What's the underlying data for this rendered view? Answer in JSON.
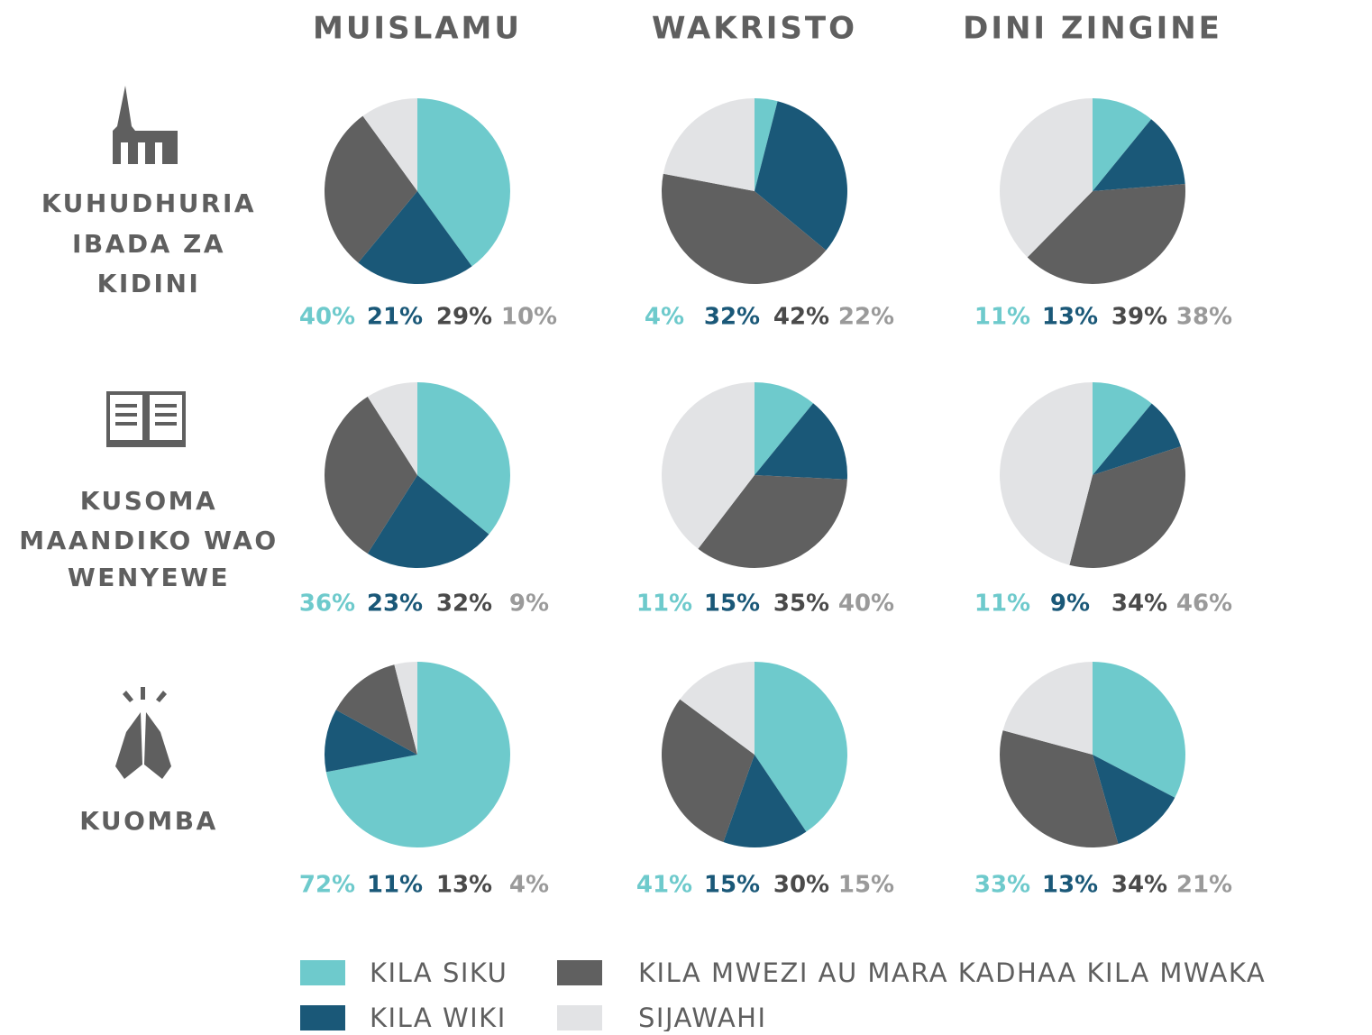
{
  "columns": [
    "MUISLAMU",
    "WAKRISTO",
    "DINI ZINGINE"
  ],
  "rows": [
    [
      "KUHUDHURIA",
      "IBADA ZA",
      "KIDINI"
    ],
    [
      "KUSOMA",
      "MAANDIKO WAO",
      "WENYEWE"
    ],
    [
      "KUOMBA"
    ]
  ],
  "legend": {
    "categories": [
      "KILA SIKU",
      "KILA WIKI",
      "KILA MWEZI AU MARA KADHAA KILA MWAKA",
      "SIJAWAHI"
    ],
    "colors": [
      "#6ecacc",
      "#1a5878",
      "#606060",
      "#e2e3e5"
    ],
    "label_colors": [
      "#6ecacc",
      "#1a5878",
      "#4a4a4a",
      "#9a9a9a"
    ]
  },
  "chart_data": [
    {
      "type": "pie",
      "values": [
        40,
        21,
        29,
        10
      ],
      "value_labels": [
        "40%",
        "21%",
        "29%",
        "10%"
      ]
    },
    {
      "type": "pie",
      "values": [
        4,
        32,
        42,
        22
      ],
      "value_labels": [
        "4%",
        "32%",
        "42%",
        "22%"
      ]
    },
    {
      "type": "pie",
      "values": [
        11,
        13,
        39,
        38
      ],
      "value_labels": [
        "11%",
        "13%",
        "39%",
        "38%"
      ]
    },
    {
      "type": "pie",
      "values": [
        36,
        23,
        32,
        9
      ],
      "value_labels": [
        "36%",
        "23%",
        "32%",
        "9%"
      ]
    },
    {
      "type": "pie",
      "values": [
        11,
        15,
        35,
        40
      ],
      "value_labels": [
        "11%",
        "15%",
        "35%",
        "40%"
      ]
    },
    {
      "type": "pie",
      "values": [
        11,
        9,
        34,
        46
      ],
      "value_labels": [
        "11%",
        "9%",
        "34%",
        "46%"
      ]
    },
    {
      "type": "pie",
      "values": [
        72,
        11,
        13,
        4
      ],
      "value_labels": [
        "72%",
        "11%",
        "13%",
        "4%"
      ]
    },
    {
      "type": "pie",
      "values": [
        41,
        15,
        30,
        15
      ],
      "value_labels": [
        "41%",
        "15%",
        "30%",
        "15%"
      ]
    },
    {
      "type": "pie",
      "values": [
        33,
        13,
        34,
        21
      ],
      "value_labels": [
        "33%",
        "13%",
        "34%",
        "21%"
      ]
    }
  ]
}
